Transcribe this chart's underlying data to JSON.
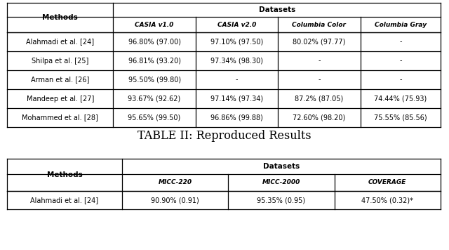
{
  "caption": "TABLE II: Reproduced Results",
  "table1": {
    "col_header_row2": [
      "CASIA v1.0",
      "CASIA v2.0",
      "Columbia Color",
      "Columbia Gray"
    ],
    "rows": [
      [
        "Alahmadi et al. [24]",
        "96.80% (97.00)",
        "97.10% (97.50)",
        "80.02% (97.77)",
        "-"
      ],
      [
        "Shilpa et al. [25]",
        "96.81% (93.20)",
        "97.34% (98.30)",
        "-",
        "-"
      ],
      [
        "Arman et al. [26]",
        "95.50% (99.80)",
        "-",
        "-",
        "-"
      ],
      [
        "Mandeep et al. [27]",
        "93.67% (92.62)",
        "97.14% (97.34)",
        "87.2% (87.05)",
        "74.44% (75.93)"
      ],
      [
        "Mohammed et al. [28]",
        "95.65% (99.50)",
        "96.86% (99.88)",
        "72.60% (98.20)",
        "75.55% (85.56)"
      ]
    ]
  },
  "table2": {
    "col_header_row2": [
      "MICC-220",
      "MICC-2000",
      "COVERAGE"
    ],
    "rows": [
      [
        "Alahmadi et al. [24]",
        "90.90% (0.91)",
        "95.35% (0.95)",
        "47.50% (0.32)*"
      ]
    ]
  },
  "bg_color": "#ffffff",
  "text_color": "#000000"
}
